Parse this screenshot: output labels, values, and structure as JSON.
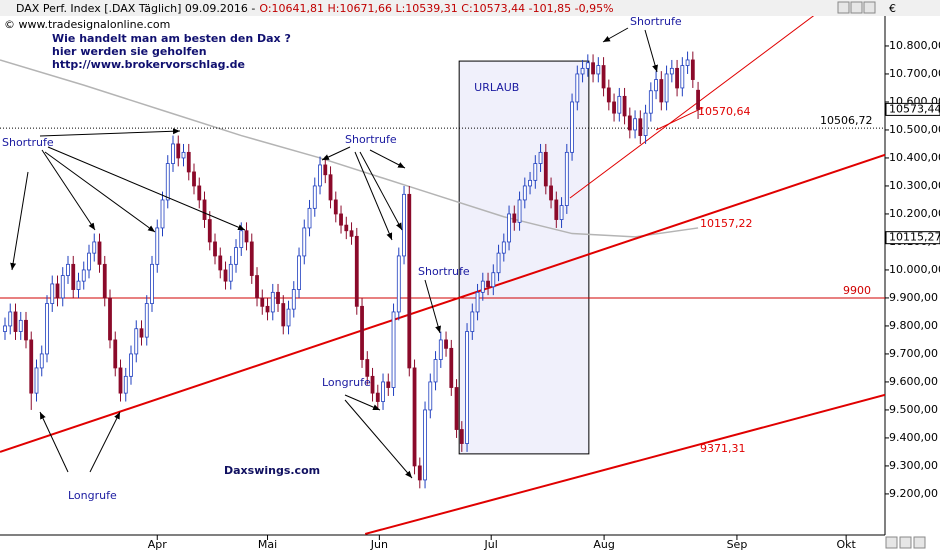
{
  "chart_data": {
    "type": "candlestick",
    "header": "DAX Perf. Index [.DAX  Täglich] 09.09.2016 -",
    "header_quote": "O:10641,81 H:10671,66 L:10539,31 C:10573,44 -101,85 -0,95%",
    "source": "© www.tradesignalonline.com",
    "promo": [
      "Wie handelt man am besten  den Dax ?",
      "hier werden sie geholfen",
      "http://www.brokervorschlag.de"
    ],
    "currency": "€",
    "up_color": "#1f3fbf",
    "down_color": "#8b0a2a",
    "xlim": [
      -0.95,
      167.6
    ],
    "xticks": [
      {
        "value": 29,
        "label": "Apr"
      },
      {
        "value": 50,
        "label": "Mai"
      },
      {
        "value": 71.3,
        "label": "Jun"
      },
      {
        "value": 92.6,
        "label": "Jul"
      },
      {
        "value": 114.1,
        "label": "Aug"
      },
      {
        "value": 139.4,
        "label": "Sep"
      },
      {
        "value": 160.2,
        "label": "Okt"
      }
    ],
    "ylim": [
      9089,
      10907
    ],
    "yticks": [
      {
        "value": 9200,
        "label": "9.200,00"
      },
      {
        "value": 9300,
        "label": "9.300,00"
      },
      {
        "value": 9400,
        "label": "9.400,00"
      },
      {
        "value": 9500,
        "label": "9.500,00"
      },
      {
        "value": 9600,
        "label": "9.600,00"
      },
      {
        "value": 9700,
        "label": "9.700,00"
      },
      {
        "value": 9800,
        "label": "9.800,00"
      },
      {
        "value": 9900,
        "label": "9.900,00"
      },
      {
        "value": 10000,
        "label": "10.000,00"
      },
      {
        "value": 10100,
        "label": "10.100,00"
      },
      {
        "value": 10200,
        "label": "10.200,00"
      },
      {
        "value": 10300,
        "label": "10.300,00"
      },
      {
        "value": 10400,
        "label": "10.400,00"
      },
      {
        "value": 10500,
        "label": "10.500,00"
      },
      {
        "value": 10600,
        "label": "10.600,00"
      },
      {
        "value": 10700,
        "label": "10.700,00"
      },
      {
        "value": 10800,
        "label": "10.800,00"
      }
    ],
    "open": [
      9780,
      9800,
      9850,
      9780,
      9820,
      9750,
      9560,
      9650,
      9700,
      9880,
      9950,
      9900,
      9980,
      10020,
      9930,
      9960,
      10000,
      10060,
      10100,
      10020,
      9900,
      9750,
      9650,
      9560,
      9620,
      9700,
      9790,
      9760,
      9880,
      10020,
      10150,
      10250,
      10380,
      10450,
      10400,
      10420,
      10350,
      10300,
      10250,
      10180,
      10100,
      10050,
      10000,
      9960,
      10020,
      10080,
      10140,
      10100,
      9980,
      9900,
      9870,
      9850,
      9920,
      9880,
      9800,
      9860,
      9930,
      10050,
      10150,
      10220,
      10300,
      10375,
      10340,
      10250,
      10200,
      10160,
      10140,
      10120,
      9870,
      9680,
      9620,
      9560,
      9530,
      9600,
      9580,
      9850,
      10050,
      10270,
      9650,
      9300,
      9250,
      9500,
      9600,
      9680,
      9750,
      9720,
      9580,
      9430,
      9380,
      9780,
      9850,
      9920,
      9960,
      9940,
      9990,
      10060,
      10100,
      10200,
      10170,
      10250,
      10300,
      10320,
      10380,
      10420,
      10300,
      10250,
      10180,
      10230,
      10420,
      10600,
      10700,
      10720,
      10740,
      10700,
      10730,
      10650,
      10600,
      10560,
      10620,
      10550,
      10500,
      10540,
      10480,
      10560,
      10640,
      10680,
      10600,
      10700,
      10720,
      10650,
      10730,
      10750,
      10641.81
    ],
    "high": [
      9830,
      9880,
      9880,
      9850,
      9850,
      9780,
      9680,
      9730,
      9910,
      9980,
      9980,
      10010,
      10050,
      10050,
      9990,
      10030,
      10090,
      10130,
      10130,
      10050,
      9930,
      9780,
      9680,
      9650,
      9730,
      9820,
      9820,
      9910,
      10050,
      10180,
      10280,
      10410,
      10480,
      10480,
      10450,
      10450,
      10380,
      10330,
      10280,
      10210,
      10130,
      10080,
      10030,
      10050,
      10110,
      10170,
      10170,
      10130,
      10010,
      9930,
      9900,
      9950,
      9950,
      9910,
      9890,
      9960,
      10080,
      10180,
      10250,
      10330,
      10405,
      10405,
      10370,
      10280,
      10230,
      10190,
      10170,
      10150,
      9900,
      9710,
      9650,
      9590,
      9630,
      9630,
      9880,
      10080,
      10300,
      10300,
      9680,
      9330,
      9530,
      9630,
      9710,
      9780,
      9780,
      9750,
      9610,
      9460,
      9810,
      9880,
      9950,
      9990,
      9990,
      10020,
      10090,
      10130,
      10230,
      10230,
      10280,
      10330,
      10350,
      10410,
      10450,
      10450,
      10330,
      10280,
      10260,
      10450,
      10630,
      10730,
      10750,
      10770,
      10770,
      10760,
      10760,
      10680,
      10630,
      10650,
      10650,
      10580,
      10570,
      10570,
      10590,
      10670,
      10710,
      10710,
      10730,
      10750,
      10750,
      10760,
      10780,
      10780,
      10671.66
    ],
    "low": [
      9750,
      9770,
      9750,
      9750,
      9720,
      9500,
      9530,
      9620,
      9670,
      9850,
      9870,
      9870,
      9950,
      9900,
      9900,
      9930,
      9970,
      10030,
      9990,
      9870,
      9720,
      9620,
      9530,
      9530,
      9590,
      9670,
      9730,
      9730,
      9850,
      9990,
      10120,
      10220,
      10350,
      10370,
      10370,
      10320,
      10270,
      10220,
      10150,
      10070,
      10020,
      9970,
      9930,
      9930,
      9990,
      10050,
      10070,
      9950,
      9870,
      9840,
      9820,
      9820,
      9850,
      9770,
      9770,
      9830,
      9900,
      10020,
      10120,
      10190,
      10270,
      10310,
      10220,
      10170,
      10130,
      10110,
      10090,
      9840,
      9650,
      9590,
      9530,
      9500,
      9500,
      9550,
      9550,
      9820,
      10020,
      9620,
      9270,
      9220,
      9220,
      9470,
      9570,
      9650,
      9690,
      9550,
      9400,
      9350,
      9350,
      9750,
      9820,
      9890,
      9910,
      9910,
      9960,
      10030,
      10070,
      10140,
      10140,
      10220,
      10270,
      10290,
      10350,
      10270,
      10220,
      10150,
      10150,
      10200,
      10390,
      10570,
      10670,
      10690,
      10670,
      10670,
      10620,
      10570,
      10530,
      10530,
      10520,
      10470,
      10470,
      10450,
      10450,
      10530,
      10610,
      10570,
      10570,
      10670,
      10620,
      10620,
      10700,
      10650,
      10539.31
    ],
    "close": [
      9800,
      9850,
      9780,
      9820,
      9750,
      9560,
      9650,
      9700,
      9880,
      9950,
      9900,
      9980,
      10020,
      9930,
      9960,
      10000,
      10060,
      10100,
      10020,
      9900,
      9750,
      9650,
      9560,
      9620,
      9700,
      9790,
      9760,
      9880,
      10020,
      10150,
      10250,
      10380,
      10450,
      10400,
      10420,
      10350,
      10300,
      10250,
      10180,
      10100,
      10050,
      10000,
      9960,
      10020,
      10080,
      10140,
      10100,
      9980,
      9900,
      9870,
      9850,
      9920,
      9880,
      9800,
      9860,
      9930,
      10050,
      10150,
      10220,
      10300,
      10375,
      10340,
      10250,
      10200,
      10160,
      10140,
      10120,
      9870,
      9680,
      9620,
      9560,
      9530,
      9600,
      9580,
      9850,
      10050,
      10270,
      9650,
      9300,
      9250,
      9500,
      9600,
      9680,
      9750,
      9720,
      9580,
      9430,
      9380,
      9780,
      9850,
      9920,
      9960,
      9940,
      9990,
      10060,
      10100,
      10200,
      10170,
      10250,
      10300,
      10320,
      10380,
      10420,
      10300,
      10250,
      10180,
      10230,
      10420,
      10600,
      10700,
      10720,
      10740,
      10700,
      10730,
      10650,
      10600,
      10560,
      10620,
      10550,
      10500,
      10540,
      10480,
      10560,
      10640,
      10680,
      10600,
      10700,
      10720,
      10650,
      10730,
      10750,
      10680,
      10573.44
    ],
    "moving_average": {
      "color": "#b4b4b4",
      "x": [
        -0.95,
        15,
        30,
        45,
        60,
        80,
        95,
        108,
        120,
        132
      ],
      "values": [
        10750,
        10660,
        10570,
        10480,
        10400,
        10280,
        10190,
        10130,
        10118,
        10150
      ]
    },
    "hlines": [
      {
        "value": 10506.72,
        "label": "10506,72",
        "color": "#000000",
        "dotted": true
      },
      {
        "value": 9900,
        "label": "9900",
        "color": "#d00000",
        "dotted": false
      }
    ],
    "trendlines": [
      {
        "label": "10157,22",
        "color": "#e00000",
        "width": 2,
        "from": [
          -0.95,
          9350
        ],
        "to": [
          167.6,
          10411
        ]
      },
      {
        "label": "9371,31",
        "color": "#e00000",
        "width": 2,
        "from": [
          68.6,
          9057
        ],
        "to": [
          167.6,
          9554
        ]
      },
      {
        "label": "10570,64",
        "color": "#e00000",
        "width": 1,
        "from": [
          107.6,
          10257
        ],
        "to": [
          158,
          10964
        ]
      },
      {
        "color": "#e00000",
        "width": 1,
        "from": [
          124,
          10500
        ],
        "to": [
          133,
          10580
        ]
      }
    ],
    "axis_markers": [
      {
        "value": 10573.44,
        "label": "10573,44"
      },
      {
        "value": 10115.27,
        "label": "10115,27"
      }
    ],
    "box": {
      "label": "URLAUB",
      "from": [
        86.5,
        10746
      ],
      "to": [
        111.2,
        9343
      ]
    },
    "annotations": [
      "Shortrufe",
      "Shortrufe",
      "Shortrufe",
      "Shortrufe",
      "Longrufe",
      "Longrufe",
      "Daxswings.com"
    ]
  }
}
